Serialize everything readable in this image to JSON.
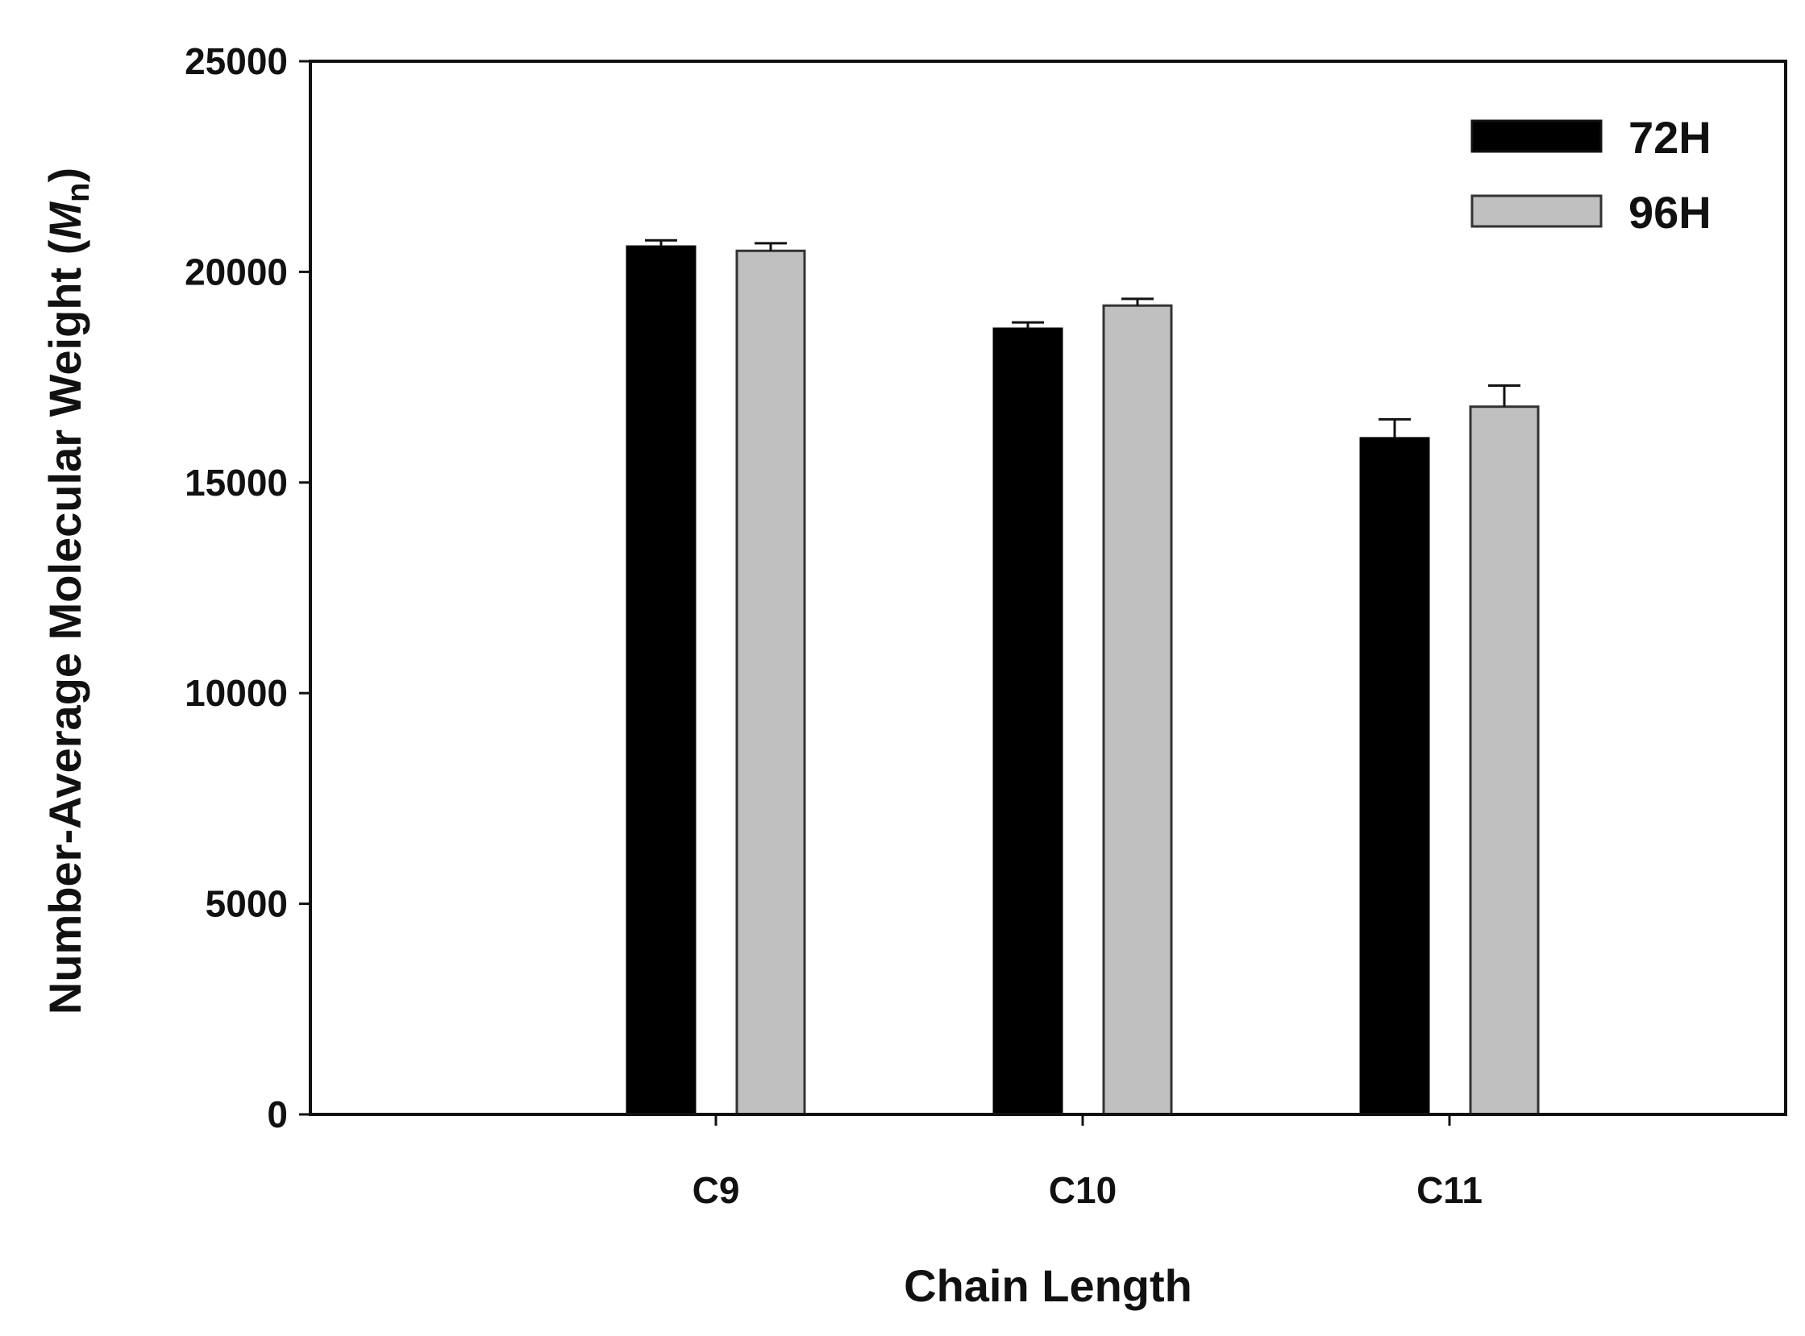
{
  "chart_data": {
    "type": "bar",
    "title": "",
    "xlabel": "Chain Length",
    "ylabel": "Number-Average Molecular Weight (",
    "ylabel_symbol": "M",
    "ylabel_subscript": "n",
    "ylabel_close": ")",
    "categories": [
      "C9",
      "C10",
      "C11"
    ],
    "series": [
      {
        "name": "72H",
        "color": "#000000",
        "values": [
          20600,
          18650,
          16050
        ],
        "errors": [
          150,
          150,
          450
        ]
      },
      {
        "name": "96H",
        "color": "#c0c0c0",
        "values": [
          20500,
          19200,
          16800
        ],
        "errors": [
          180,
          160,
          500
        ]
      }
    ],
    "ylim": [
      0,
      25000
    ],
    "yticks": [
      0,
      5000,
      10000,
      15000,
      20000,
      25000
    ],
    "grid": false,
    "legend_position": "top-right"
  }
}
